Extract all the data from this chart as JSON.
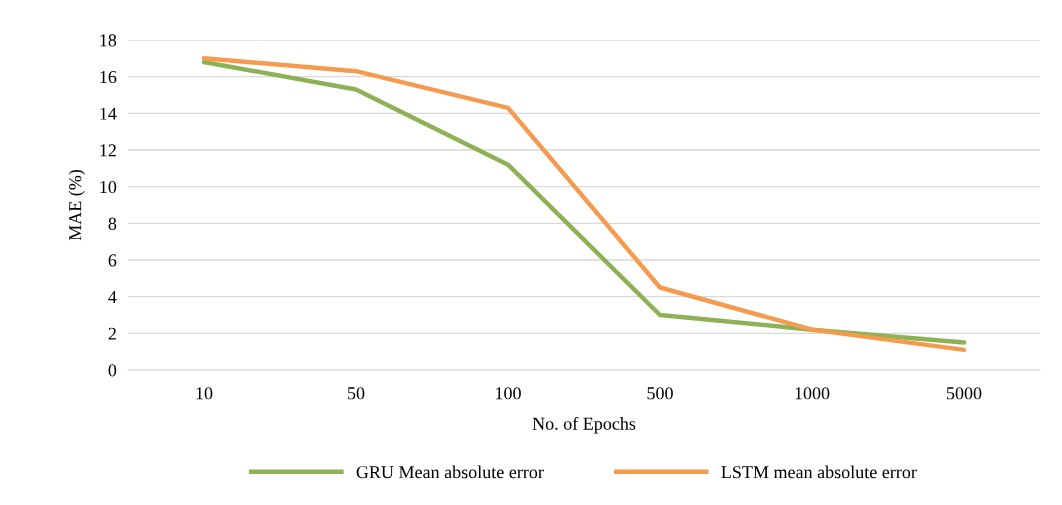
{
  "chart_data": {
    "type": "line",
    "xlabel": "No. of Epochs",
    "ylabel": "MAE (%)",
    "categories": [
      "10",
      "50",
      "100",
      "500",
      "1000",
      "5000"
    ],
    "series": [
      {
        "name": "GRU Mean absolute error",
        "color": "#8db255",
        "values": [
          16.8,
          15.3,
          11.2,
          3.0,
          2.2,
          1.5
        ]
      },
      {
        "name": "LSTM mean absolute error",
        "color": "#f59b50",
        "values": [
          17.0,
          16.3,
          14.3,
          4.5,
          2.2,
          1.1
        ]
      }
    ],
    "ylim": [
      0,
      18
    ],
    "yticks": [
      0,
      2,
      4,
      6,
      8,
      10,
      12,
      14,
      16,
      18
    ],
    "grid": "y",
    "legend": "bottom",
    "marker": "none",
    "line_style": "solid"
  }
}
